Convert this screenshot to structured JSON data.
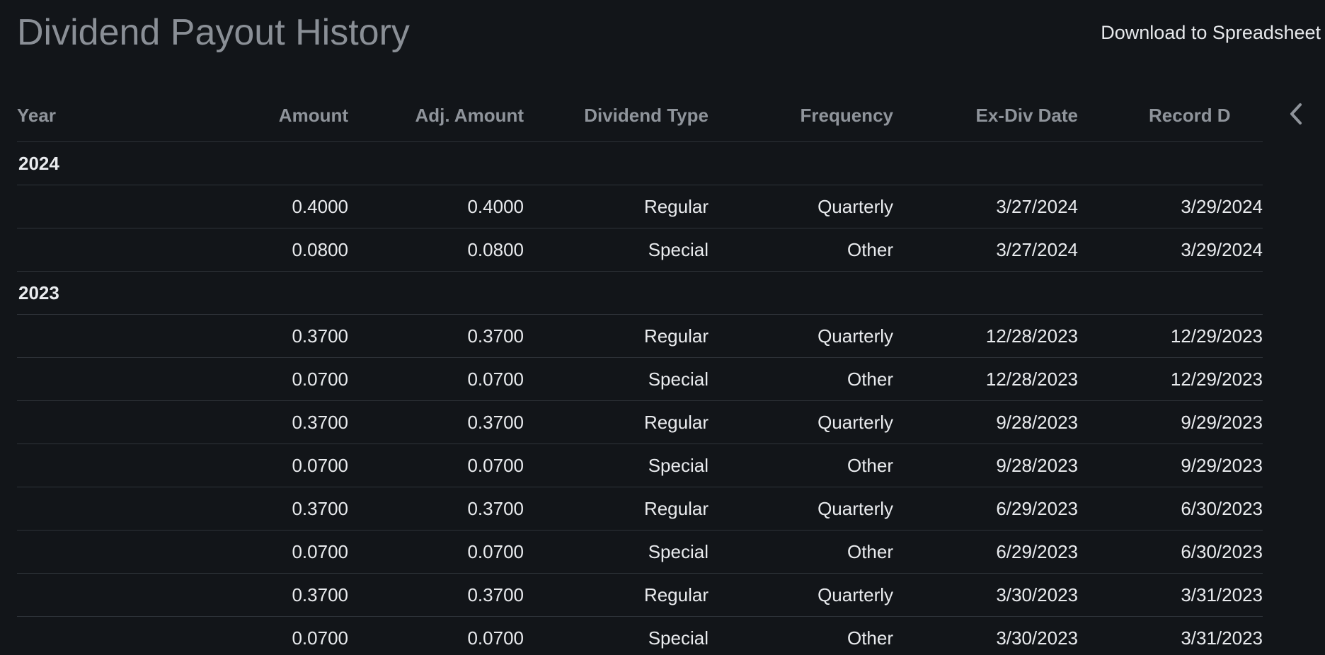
{
  "title": "Dividend Payout History",
  "download_label": "Download to Spreadsheet",
  "columns": {
    "year": "Year",
    "amount": "Amount",
    "adj_amount": "Adj. Amount",
    "dividend_type": "Dividend Type",
    "frequency": "Frequency",
    "ex_div_date": "Ex-Div Date",
    "record_date": "Record D"
  },
  "groups": [
    {
      "year": "2024",
      "rows": [
        {
          "amount": "0.4000",
          "adj_amount": "0.4000",
          "type": "Regular",
          "frequency": "Quarterly",
          "ex_div_date": "3/27/2024",
          "record_date": "3/29/2024"
        },
        {
          "amount": "0.0800",
          "adj_amount": "0.0800",
          "type": "Special",
          "frequency": "Other",
          "ex_div_date": "3/27/2024",
          "record_date": "3/29/2024"
        }
      ]
    },
    {
      "year": "2023",
      "rows": [
        {
          "amount": "0.3700",
          "adj_amount": "0.3700",
          "type": "Regular",
          "frequency": "Quarterly",
          "ex_div_date": "12/28/2023",
          "record_date": "12/29/2023"
        },
        {
          "amount": "0.0700",
          "adj_amount": "0.0700",
          "type": "Special",
          "frequency": "Other",
          "ex_div_date": "12/28/2023",
          "record_date": "12/29/2023"
        },
        {
          "amount": "0.3700",
          "adj_amount": "0.3700",
          "type": "Regular",
          "frequency": "Quarterly",
          "ex_div_date": "9/28/2023",
          "record_date": "9/29/2023"
        },
        {
          "amount": "0.0700",
          "adj_amount": "0.0700",
          "type": "Special",
          "frequency": "Other",
          "ex_div_date": "9/28/2023",
          "record_date": "9/29/2023"
        },
        {
          "amount": "0.3700",
          "adj_amount": "0.3700",
          "type": "Regular",
          "frequency": "Quarterly",
          "ex_div_date": "6/29/2023",
          "record_date": "6/30/2023"
        },
        {
          "amount": "0.0700",
          "adj_amount": "0.0700",
          "type": "Special",
          "frequency": "Other",
          "ex_div_date": "6/29/2023",
          "record_date": "6/30/2023"
        },
        {
          "amount": "0.3700",
          "adj_amount": "0.3700",
          "type": "Regular",
          "frequency": "Quarterly",
          "ex_div_date": "3/30/2023",
          "record_date": "3/31/2023"
        },
        {
          "amount": "0.0700",
          "adj_amount": "0.0700",
          "type": "Special",
          "frequency": "Other",
          "ex_div_date": "3/30/2023",
          "record_date": "3/31/2023"
        }
      ]
    }
  ],
  "icons": {
    "scroll_left": "chevron-left-icon"
  }
}
